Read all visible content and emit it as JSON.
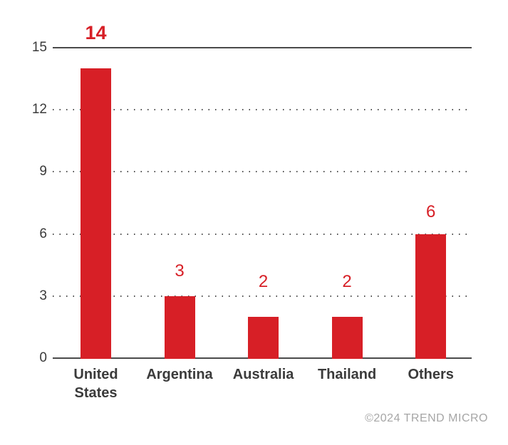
{
  "chart_data": {
    "type": "bar",
    "categories": [
      "United States",
      "Argentina",
      "Australia",
      "Thailand",
      "Others"
    ],
    "values": [
      14,
      3,
      2,
      2,
      6
    ],
    "title": "",
    "xlabel": "",
    "ylabel": "",
    "ylim": [
      0,
      15
    ],
    "yticks": [
      0,
      3,
      6,
      9,
      12,
      15
    ],
    "grid": "dotted-horizontal",
    "legend": "none",
    "bar_color": "#d71f26",
    "value_label_color": "#d71f26",
    "axis_text_color": "#3b3b3b",
    "solid_line_color": "#4a4a4a",
    "grid_dot_color": "#4f4f4f"
  },
  "footer": {
    "copyright": "©2024 TREND MICRO"
  }
}
